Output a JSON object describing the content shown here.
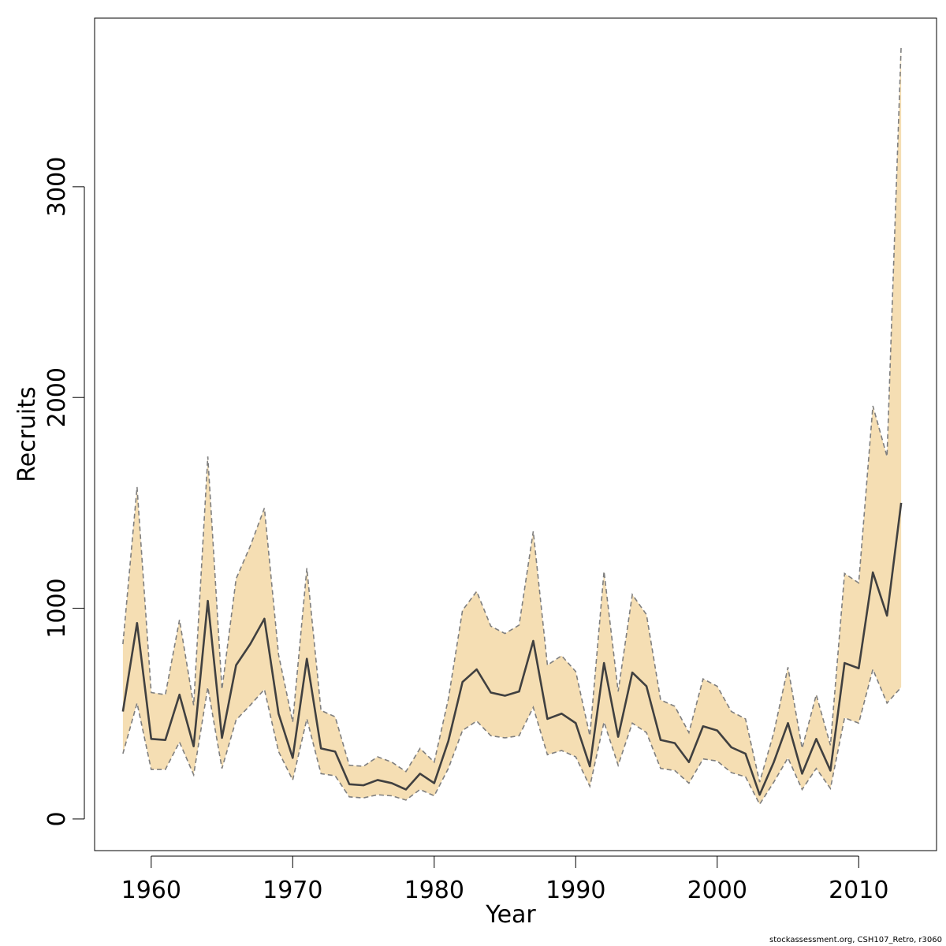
{
  "chart_data": {
    "type": "area",
    "title": "",
    "xlabel": "Year",
    "ylabel": "Recruits",
    "xlim": [
      1956,
      2015.5
    ],
    "ylim": [
      -150,
      3800
    ],
    "xticks": [
      1960,
      1970,
      1980,
      1990,
      2000,
      2010
    ],
    "yticks": [
      0,
      1000,
      2000,
      3000
    ],
    "grid": false,
    "legend": "none",
    "x": [
      1958,
      1959,
      1960,
      1961,
      1962,
      1963,
      1964,
      1965,
      1966,
      1967,
      1968,
      1969,
      1970,
      1971,
      1972,
      1973,
      1974,
      1975,
      1976,
      1977,
      1978,
      1979,
      1980,
      1981,
      1982,
      1983,
      1984,
      1985,
      1986,
      1987,
      1988,
      1989,
      1990,
      1991,
      1992,
      1993,
      1994,
      1995,
      1996,
      1997,
      1998,
      1999,
      2000,
      2001,
      2002,
      2003,
      2004,
      2005,
      2006,
      2007,
      2008,
      2009,
      2010,
      2011,
      2012,
      2013
    ],
    "series": [
      {
        "role": "estimate",
        "values": [
          510,
          930,
          380,
          375,
          590,
          345,
          1035,
          385,
          730,
          830,
          950,
          500,
          290,
          760,
          335,
          320,
          165,
          160,
          185,
          170,
          140,
          215,
          170,
          370,
          650,
          710,
          600,
          585,
          605,
          845,
          475,
          500,
          455,
          250,
          740,
          390,
          695,
          630,
          375,
          360,
          270,
          440,
          420,
          340,
          310,
          115,
          270,
          455,
          215,
          380,
          230,
          740,
          715,
          1170,
          965,
          1500
        ]
      },
      {
        "role": "upper",
        "values": [
          830,
          1575,
          600,
          590,
          945,
          540,
          1720,
          615,
          1140,
          1295,
          1475,
          780,
          460,
          1190,
          515,
          485,
          255,
          250,
          295,
          270,
          225,
          335,
          270,
          570,
          990,
          1080,
          915,
          880,
          920,
          1365,
          730,
          775,
          700,
          395,
          1175,
          605,
          1065,
          970,
          565,
          535,
          410,
          665,
          630,
          510,
          475,
          175,
          410,
          720,
          335,
          590,
          350,
          1165,
          1120,
          1960,
          1720,
          3670
        ]
      },
      {
        "role": "lower",
        "values": [
          310,
          550,
          235,
          235,
          365,
          210,
          625,
          240,
          470,
          540,
          615,
          320,
          185,
          475,
          215,
          205,
          105,
          100,
          115,
          110,
          90,
          140,
          110,
          240,
          420,
          465,
          395,
          385,
          395,
          530,
          305,
          325,
          295,
          155,
          460,
          255,
          455,
          410,
          240,
          230,
          170,
          285,
          275,
          220,
          200,
          70,
          175,
          290,
          140,
          240,
          145,
          480,
          455,
          710,
          550,
          625
        ]
      }
    ],
    "colors": {
      "band_fill": "#f5deb3",
      "band_border": "#7f7f7f",
      "line": "#404040",
      "axis": "#000000"
    },
    "footer": "stockassessment.org, CSH107_Retro, r3060"
  }
}
